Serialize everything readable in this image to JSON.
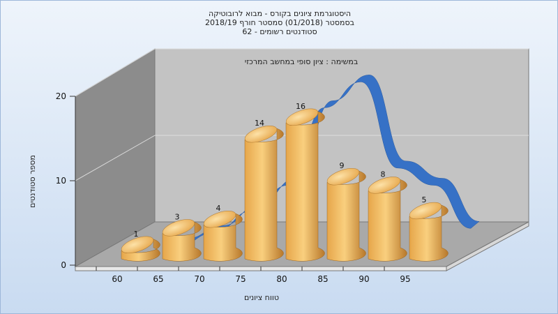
{
  "chart_data": {
    "type": "bar",
    "title_lines": [
      "היסטוגרמת ציונים בקורס - מבוא לרובוטיקה",
      "בסמסטר  (01/2018)  סמסטר חורף 2018/19",
      "סטודנטים רשומים - 62"
    ],
    "subtitle": "במשימה : ציון סופי במחשב המרכזי",
    "xlabel": "טווח ציונים",
    "ylabel": "מספר סטודנטים",
    "x_ticks": [
      "60",
      "65",
      "70",
      "75",
      "80",
      "85",
      "90",
      "95"
    ],
    "y_ticks": [
      "0",
      "10",
      "20"
    ],
    "ylim": [
      0,
      20
    ],
    "categories": [
      "60",
      "65",
      "70",
      "75",
      "80",
      "85",
      "90",
      "95"
    ],
    "values": [
      1,
      3,
      4,
      14,
      16,
      9,
      8,
      5
    ],
    "data_labels": [
      "1",
      "3",
      "4",
      "14",
      "16",
      "9",
      "8",
      "5"
    ],
    "curve_values": [
      0,
      1.5,
      4,
      7,
      16,
      19,
      9,
      7,
      2
    ],
    "colors": {
      "bar_light": "#f9cf7e",
      "bar_mid": "#e6a64a",
      "bar_dark": "#b8782b",
      "curve": "#3671c6",
      "back_wall": "#c3c3c3",
      "side_wall": "#8c8c8c",
      "floor": "#a9a9a9"
    },
    "grid": true,
    "legend": "none",
    "perspective": "3d"
  }
}
